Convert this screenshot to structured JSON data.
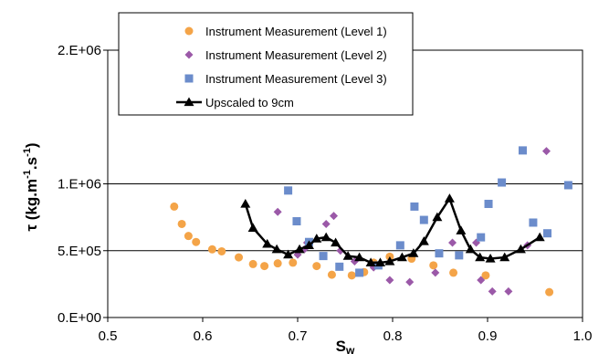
{
  "chart_data": {
    "type": "scatter",
    "title": "",
    "xlabel": "Sw",
    "xlabel_main": "S",
    "xlabel_sub": "w",
    "ylabel": "τ (kg.m-1.s-1)",
    "ylabel_parts": [
      "τ (kg.m",
      "-1",
      ".s",
      "-1",
      ")"
    ],
    "xlim": [
      0.5,
      1.0
    ],
    "ylim": [
      0,
      2000000
    ],
    "x_ticks": [
      0.5,
      0.6,
      0.7,
      0.8,
      0.9,
      1.0
    ],
    "x_tick_labels": [
      "0.5",
      "0.6",
      "0.7",
      "0.8",
      "0.9",
      "1.0"
    ],
    "y_ticks": [
      0,
      500000,
      1000000,
      2000000
    ],
    "y_tick_labels": [
      "0.E+00",
      "5.E+05",
      "1.E+06",
      "2.E+06"
    ],
    "gridlines": "horizontal",
    "legend_position": "top-left",
    "series": [
      {
        "name": "Instrument Measurement (Level 1)",
        "marker": "circle",
        "color": "#F4A448",
        "points": [
          [
            0.57,
            830000
          ],
          [
            0.578,
            700000
          ],
          [
            0.585,
            610000
          ],
          [
            0.593,
            565000
          ],
          [
            0.61,
            510000
          ],
          [
            0.62,
            495000
          ],
          [
            0.638,
            450000
          ],
          [
            0.653,
            400000
          ],
          [
            0.665,
            385000
          ],
          [
            0.679,
            405000
          ],
          [
            0.695,
            410000
          ],
          [
            0.72,
            385000
          ],
          [
            0.736,
            320000
          ],
          [
            0.757,
            315000
          ],
          [
            0.77,
            340000
          ],
          [
            0.78,
            410000
          ],
          [
            0.797,
            455000
          ],
          [
            0.82,
            440000
          ],
          [
            0.843,
            390000
          ],
          [
            0.864,
            335000
          ],
          [
            0.898,
            315000
          ],
          [
            0.965,
            190000
          ]
        ]
      },
      {
        "name": "Instrument Measurement (Level 2)",
        "marker": "diamond",
        "color": "#9B59A8",
        "points": [
          [
            0.679,
            790000
          ],
          [
            0.7,
            470000
          ],
          [
            0.707,
            510000
          ],
          [
            0.71,
            560000
          ],
          [
            0.73,
            700000
          ],
          [
            0.738,
            760000
          ],
          [
            0.745,
            500000
          ],
          [
            0.76,
            420000
          ],
          [
            0.78,
            375000
          ],
          [
            0.797,
            280000
          ],
          [
            0.818,
            265000
          ],
          [
            0.845,
            335000
          ],
          [
            0.863,
            560000
          ],
          [
            0.888,
            560000
          ],
          [
            0.893,
            280000
          ],
          [
            0.905,
            195000
          ],
          [
            0.922,
            195000
          ],
          [
            0.942,
            540000
          ],
          [
            0.962,
            1245000
          ]
        ]
      },
      {
        "name": "Instrument Measurement (Level 3)",
        "marker": "square",
        "color": "#6B8CCB",
        "points": [
          [
            0.69,
            950000
          ],
          [
            0.699,
            720000
          ],
          [
            0.712,
            565000
          ],
          [
            0.727,
            460000
          ],
          [
            0.744,
            380000
          ],
          [
            0.765,
            335000
          ],
          [
            0.785,
            390000
          ],
          [
            0.808,
            540000
          ],
          [
            0.823,
            830000
          ],
          [
            0.833,
            730000
          ],
          [
            0.849,
            480000
          ],
          [
            0.87,
            465000
          ],
          [
            0.893,
            600000
          ],
          [
            0.901,
            850000
          ],
          [
            0.915,
            1010000
          ],
          [
            0.937,
            1250000
          ],
          [
            0.948,
            710000
          ],
          [
            0.963,
            630000
          ],
          [
            0.985,
            990000
          ]
        ]
      },
      {
        "name": "Upscaled to 9cm",
        "marker": "triangle",
        "line": true,
        "color": "#000000",
        "points": [
          [
            0.645,
            850000
          ],
          [
            0.653,
            670000
          ],
          [
            0.668,
            550000
          ],
          [
            0.678,
            510000
          ],
          [
            0.69,
            470000
          ],
          [
            0.702,
            510000
          ],
          [
            0.712,
            540000
          ],
          [
            0.72,
            590000
          ],
          [
            0.73,
            600000
          ],
          [
            0.74,
            560000
          ],
          [
            0.753,
            460000
          ],
          [
            0.765,
            450000
          ],
          [
            0.777,
            410000
          ],
          [
            0.787,
            410000
          ],
          [
            0.797,
            420000
          ],
          [
            0.81,
            450000
          ],
          [
            0.822,
            480000
          ],
          [
            0.833,
            570000
          ],
          [
            0.847,
            750000
          ],
          [
            0.86,
            890000
          ],
          [
            0.872,
            650000
          ],
          [
            0.882,
            510000
          ],
          [
            0.892,
            450000
          ],
          [
            0.903,
            440000
          ],
          [
            0.918,
            450000
          ],
          [
            0.935,
            510000
          ],
          [
            0.955,
            600000
          ]
        ]
      }
    ]
  }
}
